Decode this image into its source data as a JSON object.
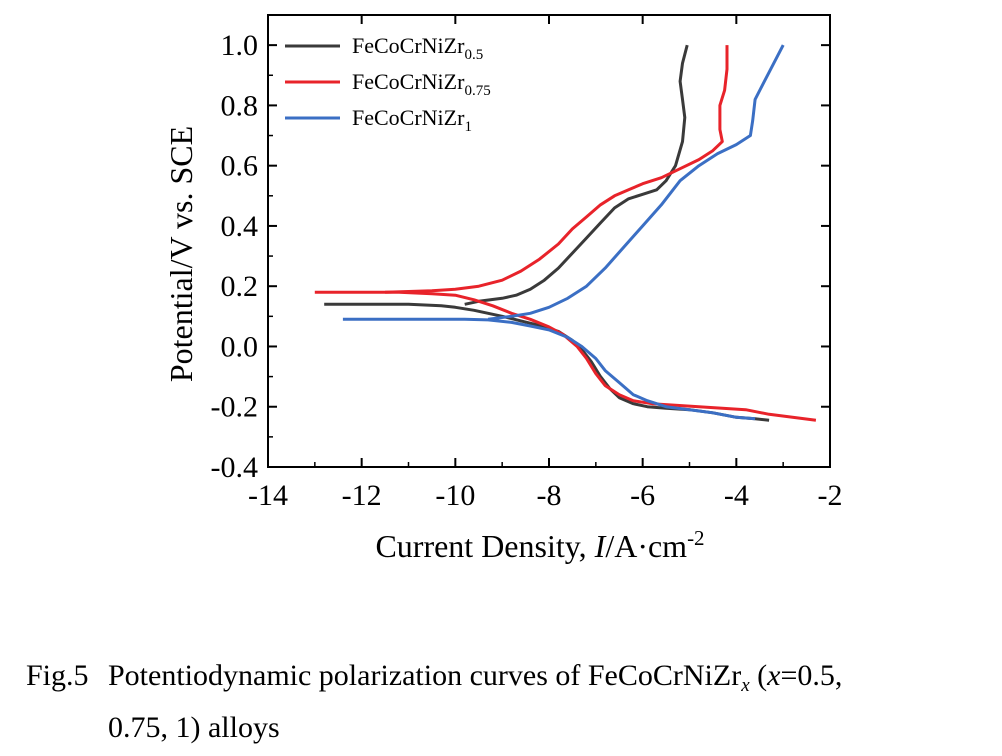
{
  "chart_data": {
    "type": "line",
    "xlabel": "Current Density, I/A·cm",
    "xlabel_prefix": "Current Density, ",
    "xlabel_italic": "I",
    "xlabel_units": "/A·cm",
    "xlabel_sup": "-2",
    "ylabel": "Potential/V vs. SCE",
    "xlim": [
      -14,
      -2
    ],
    "ylim": [
      -0.4,
      1.1
    ],
    "xticks": [
      "-14",
      "-12",
      "-10",
      "-8",
      "-6",
      "-4",
      "-2"
    ],
    "yticks": [
      "-0.4",
      "-0.2",
      "0.0",
      "0.2",
      "0.4",
      "0.6",
      "0.8",
      "1.0"
    ],
    "grid": false,
    "legend_position": "top-left",
    "series": [
      {
        "name": "FeCoCrNiZr0.5",
        "name_base": "FeCoCrNiZr",
        "name_sub": "0.5",
        "color": "#3a3a3a",
        "points": [
          [
            -12.8,
            0.14
          ],
          [
            -12.0,
            0.14
          ],
          [
            -11.0,
            0.14
          ],
          [
            -10.3,
            0.135
          ],
          [
            -10.0,
            0.13
          ],
          [
            -9.6,
            0.12
          ],
          [
            -9.3,
            0.11
          ],
          [
            -9.0,
            0.1
          ],
          [
            -8.6,
            0.085
          ],
          [
            -8.2,
            0.07
          ],
          [
            -7.8,
            0.05
          ],
          [
            -7.5,
            0.02
          ],
          [
            -7.3,
            -0.01
          ],
          [
            -7.1,
            -0.05
          ],
          [
            -6.9,
            -0.1
          ],
          [
            -6.7,
            -0.14
          ],
          [
            -6.5,
            -0.17
          ],
          [
            -6.2,
            -0.19
          ],
          [
            -5.9,
            -0.2
          ],
          [
            -5.5,
            -0.205
          ],
          [
            -5.0,
            -0.21
          ],
          [
            -4.5,
            -0.22
          ],
          [
            -4.0,
            -0.235
          ],
          [
            -3.6,
            -0.24
          ],
          [
            -3.3,
            -0.245
          ],
          [
            -3.3,
            -0.245
          ],
          [
            -3.3,
            -0.245
          ]
        ],
        "anodic": [
          [
            -9.8,
            0.14
          ],
          [
            -9.5,
            0.15
          ],
          [
            -9.0,
            0.16
          ],
          [
            -8.7,
            0.17
          ],
          [
            -8.4,
            0.19
          ],
          [
            -8.1,
            0.22
          ],
          [
            -7.8,
            0.26
          ],
          [
            -7.5,
            0.31
          ],
          [
            -7.2,
            0.36
          ],
          [
            -6.9,
            0.41
          ],
          [
            -6.6,
            0.46
          ],
          [
            -6.3,
            0.49
          ],
          [
            -6.0,
            0.505
          ],
          [
            -5.7,
            0.52
          ],
          [
            -5.5,
            0.55
          ],
          [
            -5.3,
            0.6
          ],
          [
            -5.15,
            0.68
          ],
          [
            -5.1,
            0.76
          ],
          [
            -5.15,
            0.82
          ],
          [
            -5.2,
            0.88
          ],
          [
            -5.15,
            0.94
          ],
          [
            -5.05,
            1.0
          ]
        ]
      },
      {
        "name": "FeCoCrNiZr0.75",
        "name_base": "FeCoCrNiZr",
        "name_sub": "0.75",
        "color": "#e8232a",
        "points": [
          [
            -13.0,
            0.18
          ],
          [
            -12.0,
            0.18
          ],
          [
            -11.2,
            0.18
          ],
          [
            -10.5,
            0.175
          ],
          [
            -10.0,
            0.17
          ],
          [
            -9.6,
            0.155
          ],
          [
            -9.2,
            0.135
          ],
          [
            -8.8,
            0.11
          ],
          [
            -8.4,
            0.09
          ],
          [
            -8.0,
            0.065
          ],
          [
            -7.7,
            0.04
          ],
          [
            -7.4,
            0.0
          ],
          [
            -7.2,
            -0.04
          ],
          [
            -7.0,
            -0.09
          ],
          [
            -6.8,
            -0.13
          ],
          [
            -6.5,
            -0.16
          ],
          [
            -6.2,
            -0.18
          ],
          [
            -5.8,
            -0.19
          ],
          [
            -5.3,
            -0.195
          ],
          [
            -4.8,
            -0.2
          ],
          [
            -4.3,
            -0.205
          ],
          [
            -3.8,
            -0.21
          ],
          [
            -3.3,
            -0.225
          ],
          [
            -2.8,
            -0.235
          ],
          [
            -2.3,
            -0.245
          ]
        ],
        "anodic": [
          [
            -11.5,
            0.18
          ],
          [
            -10.5,
            0.185
          ],
          [
            -10.0,
            0.19
          ],
          [
            -9.5,
            0.2
          ],
          [
            -9.0,
            0.22
          ],
          [
            -8.6,
            0.25
          ],
          [
            -8.2,
            0.29
          ],
          [
            -7.8,
            0.34
          ],
          [
            -7.5,
            0.39
          ],
          [
            -7.2,
            0.43
          ],
          [
            -6.9,
            0.47
          ],
          [
            -6.6,
            0.5
          ],
          [
            -6.3,
            0.52
          ],
          [
            -6.0,
            0.54
          ],
          [
            -5.6,
            0.56
          ],
          [
            -5.2,
            0.59
          ],
          [
            -4.8,
            0.62
          ],
          [
            -4.5,
            0.65
          ],
          [
            -4.3,
            0.68
          ],
          [
            -4.35,
            0.72
          ],
          [
            -4.35,
            0.8
          ],
          [
            -4.25,
            0.85
          ],
          [
            -4.2,
            0.92
          ],
          [
            -4.2,
            1.0
          ]
        ]
      },
      {
        "name": "FeCoCrNiZr1",
        "name_base": "FeCoCrNiZr",
        "name_sub": "1",
        "color": "#3b6fc4",
        "points": [
          [
            -12.4,
            0.09
          ],
          [
            -11.5,
            0.09
          ],
          [
            -10.5,
            0.09
          ],
          [
            -9.8,
            0.09
          ],
          [
            -9.3,
            0.088
          ],
          [
            -8.8,
            0.08
          ],
          [
            -8.4,
            0.068
          ],
          [
            -8.0,
            0.055
          ],
          [
            -7.6,
            0.03
          ],
          [
            -7.3,
            0.0
          ],
          [
            -7.0,
            -0.04
          ],
          [
            -6.8,
            -0.08
          ],
          [
            -6.5,
            -0.12
          ],
          [
            -6.2,
            -0.16
          ],
          [
            -5.9,
            -0.18
          ],
          [
            -5.5,
            -0.2
          ],
          [
            -5.0,
            -0.21
          ],
          [
            -4.5,
            -0.22
          ],
          [
            -4.0,
            -0.235
          ],
          [
            -3.6,
            -0.24
          ]
        ],
        "anodic": [
          [
            -9.3,
            0.09
          ],
          [
            -8.8,
            0.1
          ],
          [
            -8.4,
            0.11
          ],
          [
            -8.0,
            0.13
          ],
          [
            -7.6,
            0.16
          ],
          [
            -7.2,
            0.2
          ],
          [
            -6.8,
            0.26
          ],
          [
            -6.4,
            0.33
          ],
          [
            -6.0,
            0.4
          ],
          [
            -5.6,
            0.47
          ],
          [
            -5.2,
            0.55
          ],
          [
            -4.8,
            0.6
          ],
          [
            -4.4,
            0.64
          ],
          [
            -4.0,
            0.67
          ],
          [
            -3.7,
            0.7
          ],
          [
            -3.65,
            0.75
          ],
          [
            -3.6,
            0.82
          ],
          [
            -3.4,
            0.88
          ],
          [
            -3.2,
            0.94
          ],
          [
            -3.0,
            1.0
          ]
        ]
      }
    ]
  },
  "caption": {
    "number": "Fig.5",
    "text_before": "Potentiodynamic polarization curves of FeCoCrNiZr",
    "text_sub": "x",
    "text_paren_open": " (",
    "text_var": "x",
    "text_after": "=0.5,",
    "line2": "0.75, 1) alloys"
  }
}
